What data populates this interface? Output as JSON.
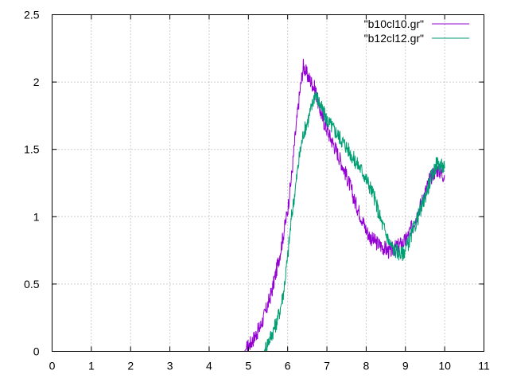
{
  "chart_data": {
    "type": "line",
    "title": "",
    "xlabel": "",
    "ylabel": "",
    "xlim": [
      0,
      11
    ],
    "ylim": [
      0,
      2.5
    ],
    "xticks": [
      0,
      1,
      2,
      3,
      4,
      5,
      6,
      7,
      8,
      9,
      10,
      11
    ],
    "xtick_labels": [
      "0",
      "1",
      "2",
      "3",
      "4",
      "5",
      "6",
      "7",
      "8",
      "9",
      "10",
      "11"
    ],
    "yticks": [
      0,
      0.5,
      1,
      1.5,
      2,
      2.5
    ],
    "ytick_labels": [
      "0",
      "0.5",
      "1",
      "1.5",
      "2",
      "2.5"
    ],
    "grid": true,
    "legend_position": "top-right",
    "series": [
      {
        "name": "\"b10cl10.gr\"",
        "color": "#9400d3",
        "x": [
          4.9,
          5.0,
          5.1,
          5.2,
          5.3,
          5.4,
          5.5,
          5.6,
          5.7,
          5.8,
          5.9,
          6.0,
          6.1,
          6.2,
          6.3,
          6.4,
          6.5,
          6.6,
          6.7,
          6.8,
          6.9,
          7.0,
          7.1,
          7.2,
          7.3,
          7.4,
          7.5,
          7.6,
          7.7,
          7.8,
          7.9,
          8.0,
          8.1,
          8.2,
          8.3,
          8.4,
          8.5,
          8.6,
          8.7,
          8.8,
          8.9,
          9.0,
          9.1,
          9.2,
          9.3,
          9.4,
          9.5,
          9.6,
          9.7,
          9.8,
          9.9,
          10.0
        ],
        "y": [
          0.0,
          0.04,
          0.08,
          0.13,
          0.18,
          0.26,
          0.35,
          0.45,
          0.58,
          0.72,
          0.88,
          1.05,
          1.3,
          1.62,
          1.9,
          2.12,
          2.05,
          2.0,
          1.95,
          1.82,
          1.72,
          1.65,
          1.58,
          1.52,
          1.45,
          1.38,
          1.3,
          1.22,
          1.12,
          1.05,
          0.98,
          0.9,
          0.85,
          0.82,
          0.8,
          0.78,
          0.76,
          0.74,
          0.76,
          0.78,
          0.8,
          0.82,
          0.88,
          0.95,
          1.02,
          1.1,
          1.18,
          1.26,
          1.32,
          1.35,
          1.33,
          1.3
        ]
      },
      {
        "name": "\"b12cl12.gr\"",
        "color": "#009e73",
        "x": [
          5.4,
          5.5,
          5.6,
          5.7,
          5.8,
          5.9,
          6.0,
          6.1,
          6.2,
          6.3,
          6.4,
          6.5,
          6.6,
          6.7,
          6.8,
          6.9,
          7.0,
          7.1,
          7.2,
          7.3,
          7.4,
          7.5,
          7.6,
          7.7,
          7.8,
          7.9,
          8.0,
          8.1,
          8.2,
          8.3,
          8.4,
          8.5,
          8.6,
          8.7,
          8.8,
          8.9,
          9.0,
          9.1,
          9.2,
          9.3,
          9.4,
          9.5,
          9.6,
          9.7,
          9.8,
          9.9,
          10.0
        ],
        "y": [
          0.0,
          0.07,
          0.13,
          0.2,
          0.3,
          0.45,
          0.7,
          1.0,
          1.22,
          1.45,
          1.62,
          1.7,
          1.8,
          1.92,
          1.85,
          1.78,
          1.72,
          1.68,
          1.64,
          1.6,
          1.56,
          1.52,
          1.47,
          1.42,
          1.38,
          1.34,
          1.28,
          1.22,
          1.15,
          1.05,
          0.95,
          0.88,
          0.8,
          0.76,
          0.74,
          0.72,
          0.76,
          0.82,
          0.9,
          0.98,
          1.06,
          1.15,
          1.24,
          1.32,
          1.4,
          1.38,
          1.36
        ]
      }
    ]
  }
}
